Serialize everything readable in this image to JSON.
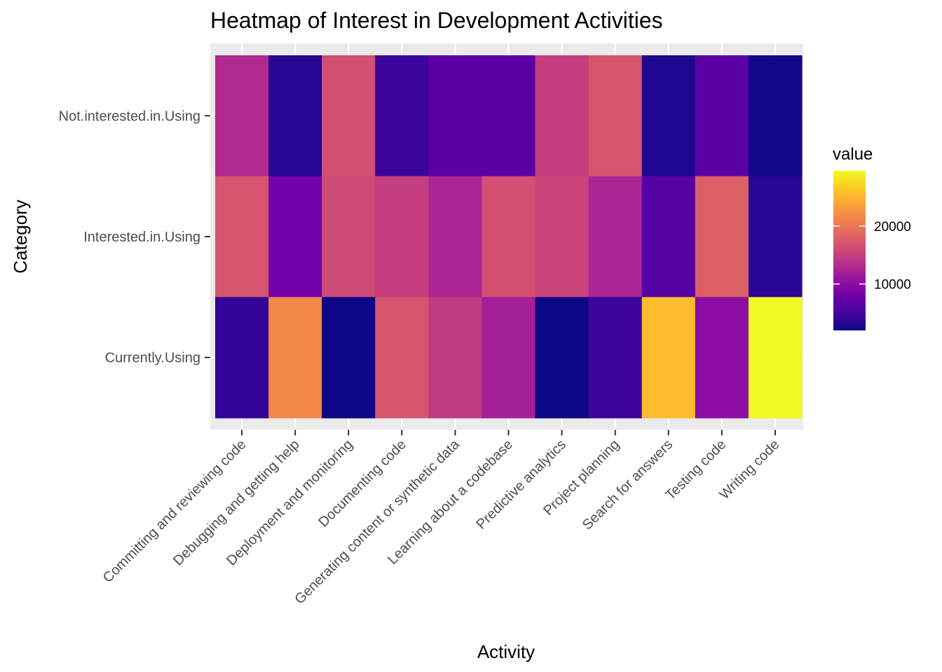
{
  "chart_data": {
    "type": "heatmap",
    "title": "Heatmap of Interest in Development Activities",
    "xlabel": "Activity",
    "ylabel": "Category",
    "x_categories": [
      "Committing and reviewing code",
      "Debugging and getting help",
      "Deployment and monitoring",
      "Documenting code",
      "Generating content or synthetic data",
      "Learning about a codebase",
      "Predictive analytics",
      "Project planning",
      "Search for answers",
      "Testing code",
      "Writing code"
    ],
    "y_categories": [
      "Not.interested.in.Using",
      "Interested.in.Using",
      "Currently.Using"
    ],
    "values": [
      [
        13000,
        3500,
        16500,
        4500,
        6500,
        6500,
        15000,
        17000,
        3000,
        6500,
        2200
      ],
      [
        17000,
        8000,
        16000,
        15000,
        12500,
        16500,
        15500,
        12500,
        6000,
        18000,
        3500
      ],
      [
        4000,
        21500,
        2000,
        17000,
        14500,
        12000,
        2000,
        4500,
        25500,
        10000,
        29500
      ]
    ],
    "legend": {
      "title": "value",
      "min": 2000,
      "max": 29500,
      "ticks": [
        10000,
        20000
      ],
      "tick_labels": [
        "10000",
        "20000"
      ],
      "palette": "plasma"
    },
    "grid": true,
    "background": "#ebebeb"
  }
}
